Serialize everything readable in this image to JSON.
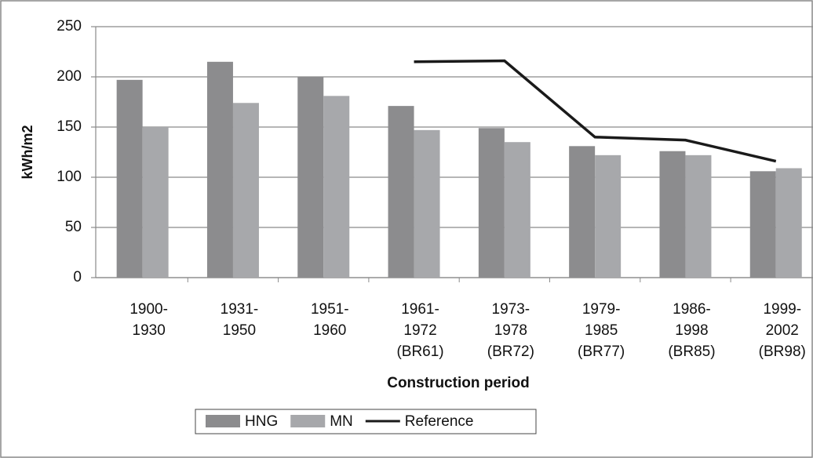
{
  "chart_data": {
    "type": "bar",
    "x_label": "Construction period",
    "y_label": "kWh/m2",
    "categories": [
      "1900-\n1930",
      "1931-\n1950",
      "1951-\n1960",
      "1961-\n1972\n(BR61)",
      "1973-\n1978\n(BR72)",
      "1979-\n1985\n(BR77)",
      "1986-\n1998\n(BR85)",
      "1999-\n2002\n(BR98)"
    ],
    "series": [
      {
        "name": "HNG",
        "type": "bar",
        "color": "#8c8c8e",
        "values": [
          197,
          215,
          200,
          171,
          149,
          131,
          126,
          106
        ]
      },
      {
        "name": "MN",
        "type": "bar",
        "color": "#a7a8ab",
        "values": [
          150,
          174,
          181,
          147,
          135,
          122,
          122,
          109
        ]
      },
      {
        "name": "Reference",
        "type": "line",
        "color": "#1a1a1a",
        "values": [
          null,
          null,
          null,
          215,
          216,
          140,
          137,
          116
        ]
      }
    ],
    "ylim": [
      0,
      250
    ],
    "yticks": [
      0,
      50,
      100,
      150,
      200,
      250
    ],
    "grid": true,
    "legend": "bottom"
  }
}
